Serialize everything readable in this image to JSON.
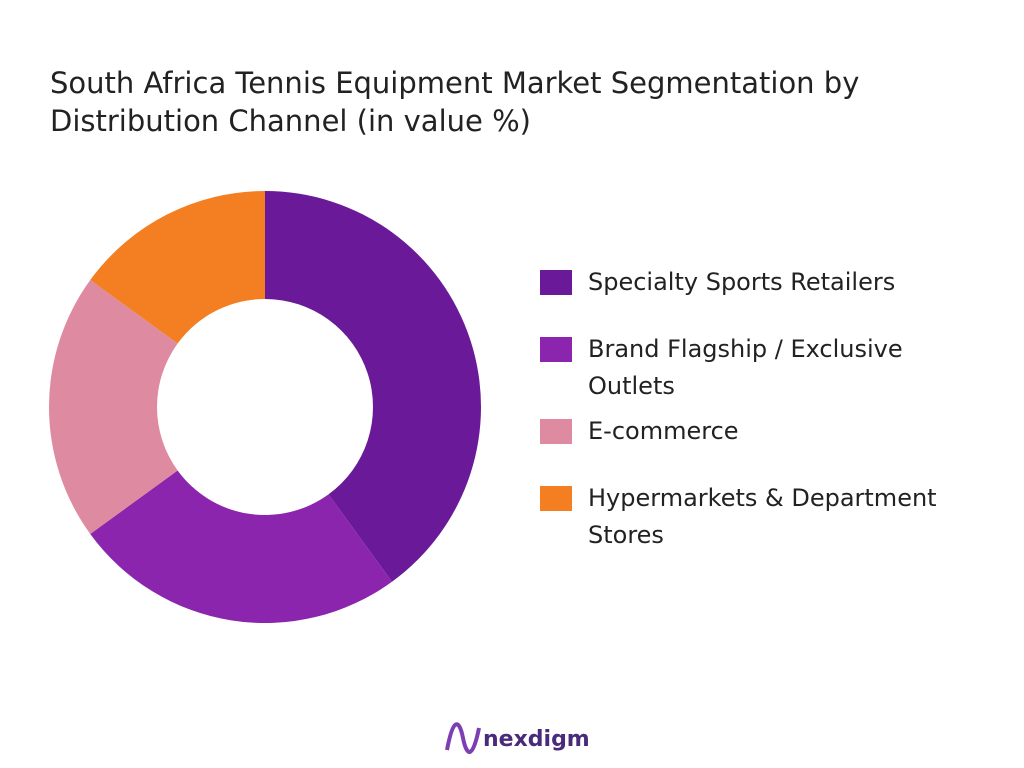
{
  "chart_data": {
    "type": "donut",
    "title": "South Africa Tennis Equipment Market  Segmentation by Distribution Channel (in value %)",
    "categories": [
      "Specialty Sports Retailers",
      "Brand Flagship / Exclusive Outlets",
      "E-commerce",
      "Hypermarkets & Department Stores"
    ],
    "values": [
      40,
      25,
      20,
      15
    ],
    "colors": [
      "#6a1a98",
      "#8b25ad",
      "#de8aa0",
      "#f37f22"
    ],
    "legend": "right"
  },
  "footer": {
    "brand": "nexdigm"
  }
}
